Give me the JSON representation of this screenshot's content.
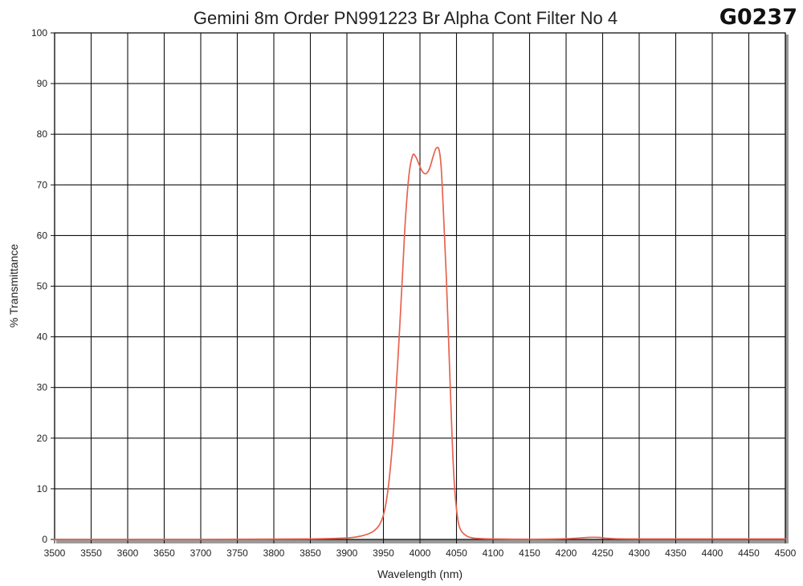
{
  "chart_data": {
    "type": "line",
    "title": "Gemini 8m Order PN991223 Br Alpha Cont Filter No 4",
    "code": "G0237",
    "xlabel": "Wavelength (nm)",
    "ylabel": "% Transmittance",
    "xlim": [
      3500,
      4500
    ],
    "ylim": [
      0,
      100
    ],
    "x_ticks": [
      3500,
      3550,
      3600,
      3650,
      3700,
      3750,
      3800,
      3850,
      3900,
      3950,
      4000,
      4050,
      4100,
      4150,
      4200,
      4250,
      4300,
      4350,
      4400,
      4450,
      4500
    ],
    "y_ticks": [
      0,
      10,
      20,
      30,
      40,
      50,
      60,
      70,
      80,
      90,
      100
    ],
    "grid": true,
    "line_color": "#e8624f",
    "grid_color": "#111111",
    "series": [
      {
        "x": [
          3500,
          3700,
          3850,
          3900,
          3920,
          3935,
          3945,
          3952,
          3958,
          3964,
          3970,
          3976,
          3980,
          3985,
          3990,
          3994,
          3998,
          4003,
          4008,
          4013,
          4018,
          4022,
          4026,
          4029,
          4032,
          4036,
          4040,
          4044,
          4047,
          4050,
          4053,
          4056,
          4060,
          4065,
          4072,
          4080,
          4100,
          4150,
          4200,
          4230,
          4245,
          4260,
          4300,
          4500
        ],
        "y": [
          0,
          0,
          0.1,
          0.3,
          0.7,
          1.5,
          3,
          6,
          12,
          22,
          36,
          52,
          63,
          72,
          75.8,
          75.6,
          74.3,
          72.7,
          72.2,
          73.2,
          75.6,
          77.2,
          77,
          73.5,
          65,
          52,
          36,
          20,
          11,
          6,
          3,
          1.8,
          1.1,
          0.6,
          0.3,
          0.2,
          0.1,
          0.05,
          0.15,
          0.4,
          0.4,
          0.2,
          0.1,
          0.1
        ]
      }
    ]
  }
}
